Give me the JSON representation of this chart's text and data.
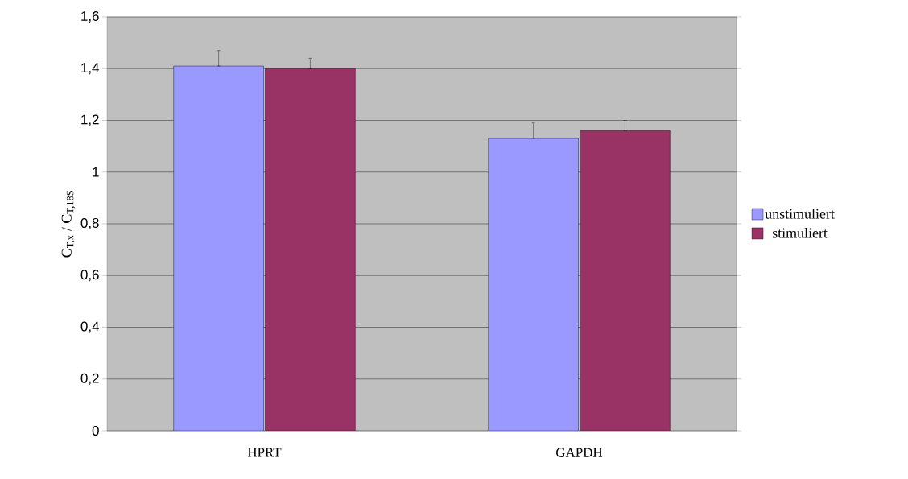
{
  "chart_data": {
    "type": "bar",
    "ylabel": "C$_{T,x}$ / C$_{T,18S}$",
    "categories": [
      "HPRT",
      "GAPDH"
    ],
    "series": [
      {
        "name": "unstimuliert",
        "color": "#9999ff",
        "values": [
          1.41,
          1.13
        ],
        "errors": [
          [
            1.41,
            1.47
          ],
          [
            1.13,
            1.19
          ]
        ]
      },
      {
        "name": "stimuliert",
        "color": "#993366",
        "values": [
          1.4,
          1.16
        ],
        "errors": [
          [
            1.4,
            1.44
          ],
          [
            1.16,
            1.2
          ]
        ]
      }
    ],
    "ylim": [
      0,
      1.6
    ],
    "yticks": [
      0,
      {
        "value": 0.2,
        "label": "0,2"
      },
      {
        "value": 0.4,
        "label": "0,4"
      },
      {
        "value": 0.6,
        "label": "0,6"
      },
      {
        "value": 0.8,
        "label": "0,8"
      },
      1,
      {
        "value": 1.2,
        "label": "1,2"
      },
      {
        "value": 1.4,
        "label": "1,4"
      },
      {
        "value": 1.6,
        "label": "1,6"
      }
    ],
    "grid": "y",
    "legend": "right"
  }
}
